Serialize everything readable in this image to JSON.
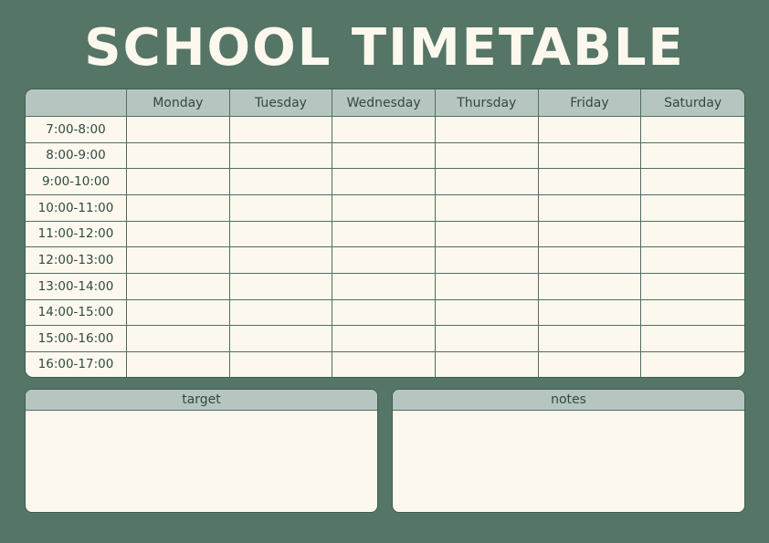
{
  "title": "SCHOOL TIMETABLE",
  "days": [
    "Monday",
    "Tuesday",
    "Wednesday",
    "Thursday",
    "Friday",
    "Saturday"
  ],
  "times": [
    "7:00-8:00",
    "8:00-9:00",
    "9:00-10:00",
    "10:00-11:00",
    "11:00-12:00",
    "12:00-13:00",
    "13:00-14:00",
    "14:00-15:00",
    "15:00-16:00",
    "16:00-17:00"
  ],
  "panels": {
    "target": "target",
    "notes": "notes"
  },
  "colors": {
    "background": "#557566",
    "header": "#b7c5c0",
    "cell": "#fcf8ee",
    "line": "#4f6e63",
    "text": "#2f4a40"
  }
}
